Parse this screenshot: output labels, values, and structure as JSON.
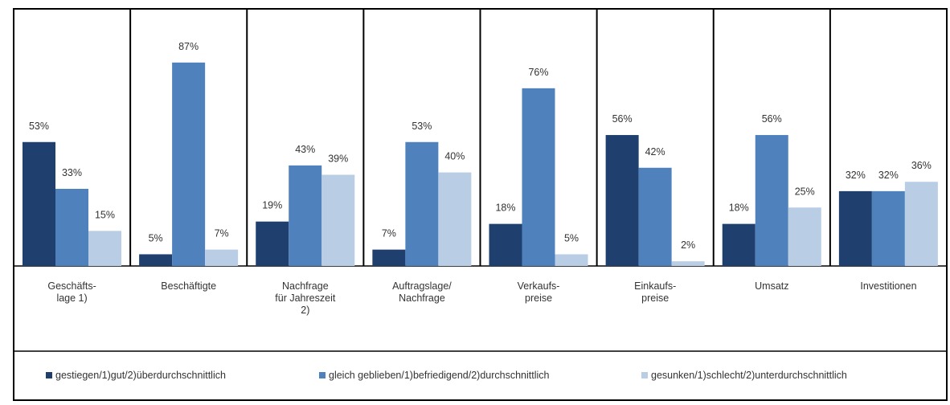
{
  "chart_data": {
    "type": "bar",
    "categories": [
      [
        "Geschäfts-",
        "lage 1)"
      ],
      [
        "Beschäftigte"
      ],
      [
        "Nachfrage",
        "für Jahreszeit",
        "2)"
      ],
      [
        "Auftragslage/",
        "Nachfrage"
      ],
      [
        "Verkaufs-",
        "preise"
      ],
      [
        "Einkaufs-",
        "preise"
      ],
      [
        "Umsatz"
      ],
      [
        "Investitionen"
      ]
    ],
    "series": [
      {
        "name": "gestiegen/1)gut/2)überdurchschnittlich",
        "color": "#1f3f6e",
        "values": [
          53,
          5,
          19,
          7,
          18,
          56,
          18,
          32
        ],
        "labels": [
          "53%",
          "5%",
          "19%",
          "7%",
          "18%",
          "56%",
          "18%",
          "32%"
        ]
      },
      {
        "name": "gleich geblieben/1)befriedigend/2)durchschnittlich",
        "color": "#4f81bd",
        "values": [
          33,
          87,
          43,
          53,
          76,
          42,
          56,
          32
        ],
        "labels": [
          "33%",
          "87%",
          "43%",
          "53%",
          "76%",
          "42%",
          "56%",
          "32%"
        ]
      },
      {
        "name": "gesunken/1)schlecht/2)unterdurchschnittlich",
        "color": "#b9cde5",
        "values": [
          15,
          7,
          39,
          40,
          5,
          2,
          25,
          36
        ],
        "labels": [
          "15%",
          "7%",
          "39%",
          "40%",
          "5%",
          "2%",
          "25%",
          "36%"
        ]
      }
    ],
    "ylim": [
      0,
      100
    ],
    "grid": false,
    "legend_position": "bottom"
  }
}
